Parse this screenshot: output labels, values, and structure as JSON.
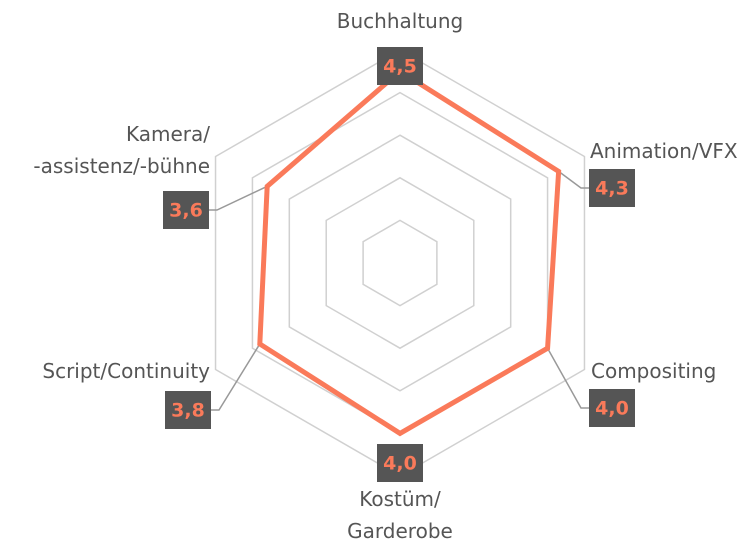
{
  "chart_data": {
    "type": "radar",
    "categories": [
      [
        "Buchhaltung"
      ],
      [
        "Animation/VFX"
      ],
      [
        "Compositing"
      ],
      [
        "Kostüm/",
        "Garderobe"
      ],
      [
        "Script/Continuity"
      ],
      [
        "Kamera/",
        "-assistenz/-bühne"
      ]
    ],
    "series": [
      {
        "color": "#fa7a5a",
        "values": [
          4.5,
          4.3,
          4.0,
          4.0,
          3.8,
          3.6
        ],
        "value_labels": [
          "4,5",
          "4,3",
          "4,0",
          "4,0",
          "3,8",
          "3,6"
        ]
      }
    ],
    "ylim": [
      0,
      5
    ],
    "yticks": [
      1,
      2,
      3,
      4,
      5
    ],
    "grid": true
  }
}
